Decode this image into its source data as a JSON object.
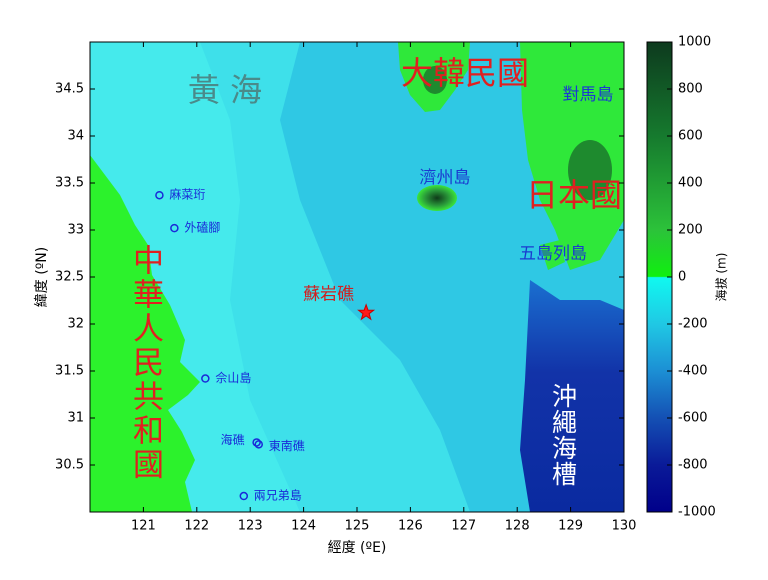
{
  "map": {
    "xlabel": "經度 (ºE)",
    "ylabel": "緯度 (ºN)",
    "xlim": [
      120,
      130
    ],
    "ylim": [
      30,
      35
    ],
    "xticks": [
      121,
      122,
      123,
      124,
      125,
      126,
      127,
      128,
      129,
      130
    ],
    "yticks": [
      30.5,
      31,
      31.5,
      32,
      32.5,
      33,
      33.5,
      34,
      34.5
    ],
    "colorbar": {
      "label": "海拔 (m)",
      "lim": [
        -1000,
        1000
      ],
      "ticks": [
        -1000,
        -800,
        -600,
        -400,
        -200,
        0,
        200,
        400,
        600,
        800,
        1000
      ]
    },
    "regions": [
      "黃 海",
      "大韓民國",
      "對馬島",
      "濟州島",
      "日本國",
      "五島列島",
      "中華人民共和國",
      "沖繩海槽"
    ],
    "places": [
      {
        "name": "麻菜珩",
        "lon": 121.3,
        "lat": 33.37,
        "marker": "circle"
      },
      {
        "name": "外磕腳",
        "lon": 121.58,
        "lat": 33.02,
        "marker": "circle"
      },
      {
        "name": "佘山島",
        "lon": 122.16,
        "lat": 31.42,
        "marker": "circle"
      },
      {
        "name": "海礁",
        "lon": 123.12,
        "lat": 30.74,
        "marker": "circle"
      },
      {
        "name": "東南礁",
        "lon": 123.16,
        "lat": 30.72,
        "marker": "circle"
      },
      {
        "name": "兩兄弟島",
        "lon": 122.88,
        "lat": 30.17,
        "marker": "circle"
      },
      {
        "name": "蘇岩礁",
        "lon": 125.17,
        "lat": 32.12,
        "marker": "star"
      }
    ]
  }
}
